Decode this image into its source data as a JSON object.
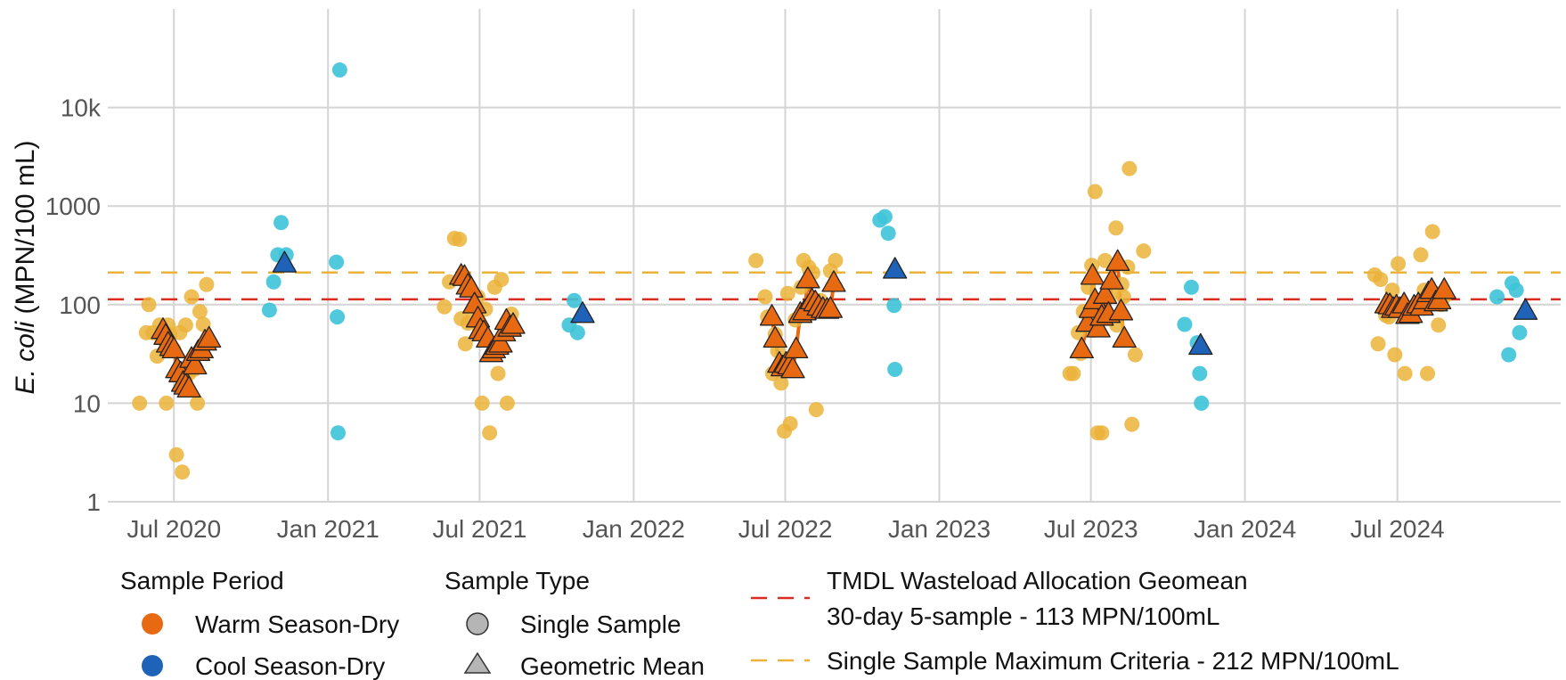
{
  "chart_data": {
    "type": "scatter",
    "y_scale": "log",
    "ylabel_italic": "E. coli",
    "ylabel_rest": " (MPN/100 mL)",
    "ylim": [
      1,
      100000
    ],
    "y_ticks": [
      {
        "v": 1,
        "label": "1"
      },
      {
        "v": 10,
        "label": "10"
      },
      {
        "v": 100,
        "label": "100"
      },
      {
        "v": 1000,
        "label": "1000"
      },
      {
        "v": 10000,
        "label": "10k"
      }
    ],
    "xlim": [
      "2020-04-13",
      "2025-01-12"
    ],
    "x_ticks": [
      {
        "date": "2020-07-01",
        "label": "Jul 2020"
      },
      {
        "date": "2021-01-01",
        "label": "Jan 2021"
      },
      {
        "date": "2021-07-01",
        "label": "Jul 2021"
      },
      {
        "date": "2022-01-01",
        "label": "Jan 2022"
      },
      {
        "date": "2022-07-01",
        "label": "Jul 2022"
      },
      {
        "date": "2023-01-01",
        "label": "Jan 2023"
      },
      {
        "date": "2023-07-01",
        "label": "Jul 2023"
      },
      {
        "date": "2024-01-01",
        "label": "Jan 2024"
      },
      {
        "date": "2024-07-01",
        "label": "Jul 2024"
      }
    ],
    "grid": true,
    "colors": {
      "warm_single": "#ebb33a",
      "cool_single": "#3dc3d9",
      "warm_mean": "#e76a13",
      "cool_mean": "#1f63b9",
      "warm_line": "#e76a13",
      "tmdl_line": "#db2a1f",
      "max_line": "#ebb33a",
      "grid": "#d4d4d4"
    },
    "reference_lines": [
      {
        "key": "tmdl",
        "value": 113,
        "color": "#db2a1f"
      },
      {
        "key": "max",
        "value": 212,
        "color": "#ebb33a"
      }
    ],
    "warm_single": [
      [
        "2020-05-21",
        10
      ],
      [
        "2020-05-29",
        52
      ],
      [
        "2020-06-01",
        100
      ],
      [
        "2020-06-06",
        52
      ],
      [
        "2020-06-11",
        30
      ],
      [
        "2020-06-14",
        62
      ],
      [
        "2020-06-17",
        45
      ],
      [
        "2020-06-22",
        10
      ],
      [
        "2020-06-24",
        62
      ],
      [
        "2020-06-26",
        50
      ],
      [
        "2020-07-01",
        35
      ],
      [
        "2020-07-04",
        3
      ],
      [
        "2020-07-08",
        52
      ],
      [
        "2020-07-11",
        2
      ],
      [
        "2020-07-15",
        62
      ],
      [
        "2020-07-19",
        20
      ],
      [
        "2020-07-22",
        120
      ],
      [
        "2020-07-25",
        22
      ],
      [
        "2020-07-29",
        10
      ],
      [
        "2020-08-01",
        85
      ],
      [
        "2020-08-05",
        63
      ],
      [
        "2020-08-09",
        160
      ],
      [
        "2021-05-20",
        95
      ],
      [
        "2021-05-26",
        170
      ],
      [
        "2021-06-01",
        470
      ],
      [
        "2021-06-07",
        460
      ],
      [
        "2021-06-09",
        72
      ],
      [
        "2021-06-14",
        40
      ],
      [
        "2021-06-17",
        65
      ],
      [
        "2021-06-24",
        80
      ],
      [
        "2021-06-29",
        120
      ],
      [
        "2021-07-01",
        55
      ],
      [
        "2021-07-04",
        10
      ],
      [
        "2021-07-08",
        90
      ],
      [
        "2021-07-13",
        5
      ],
      [
        "2021-07-19",
        150
      ],
      [
        "2021-07-23",
        20
      ],
      [
        "2021-07-27",
        180
      ],
      [
        "2021-08-03",
        10
      ],
      [
        "2021-08-08",
        80
      ],
      [
        "2022-05-27",
        280
      ],
      [
        "2022-06-07",
        120
      ],
      [
        "2022-06-10",
        75
      ],
      [
        "2022-06-16",
        20
      ],
      [
        "2022-06-19",
        50
      ],
      [
        "2022-06-22",
        34
      ],
      [
        "2022-06-26",
        16
      ],
      [
        "2022-06-30",
        5.2
      ],
      [
        "2022-07-04",
        130
      ],
      [
        "2022-07-07",
        6.2
      ],
      [
        "2022-07-13",
        70
      ],
      [
        "2022-07-20",
        150
      ],
      [
        "2022-07-23",
        280
      ],
      [
        "2022-07-29",
        240
      ],
      [
        "2022-08-03",
        210
      ],
      [
        "2022-08-07",
        8.6
      ],
      [
        "2022-08-12",
        110
      ],
      [
        "2022-08-18",
        90
      ],
      [
        "2022-08-24",
        220
      ],
      [
        "2022-08-30",
        280
      ],
      [
        "2023-06-06",
        20
      ],
      [
        "2023-06-10",
        20
      ],
      [
        "2023-06-16",
        52
      ],
      [
        "2023-06-19",
        32
      ],
      [
        "2023-06-22",
        85
      ],
      [
        "2023-06-28",
        150
      ],
      [
        "2023-07-02",
        250
      ],
      [
        "2023-07-04",
        55
      ],
      [
        "2023-07-06",
        1400
      ],
      [
        "2023-07-09",
        5
      ],
      [
        "2023-07-14",
        5
      ],
      [
        "2023-07-18",
        280
      ],
      [
        "2023-07-26",
        130
      ],
      [
        "2023-07-31",
        600
      ],
      [
        "2023-08-01",
        62
      ],
      [
        "2023-08-07",
        160
      ],
      [
        "2023-08-09",
        120
      ],
      [
        "2023-08-14",
        240
      ],
      [
        "2023-08-16",
        2400
      ],
      [
        "2023-08-19",
        6.1
      ],
      [
        "2023-08-23",
        31
      ],
      [
        "2023-09-02",
        350
      ],
      [
        "2024-06-04",
        200
      ],
      [
        "2024-06-08",
        40
      ],
      [
        "2024-06-11",
        180
      ],
      [
        "2024-06-17",
        78
      ],
      [
        "2024-06-21",
        75
      ],
      [
        "2024-06-25",
        140
      ],
      [
        "2024-06-28",
        31
      ],
      [
        "2024-07-02",
        260
      ],
      [
        "2024-07-05",
        95
      ],
      [
        "2024-07-10",
        20
      ],
      [
        "2024-07-17",
        85
      ],
      [
        "2024-07-21",
        90
      ],
      [
        "2024-07-29",
        320
      ],
      [
        "2024-08-02",
        140
      ],
      [
        "2024-08-06",
        20
      ],
      [
        "2024-08-12",
        550
      ],
      [
        "2024-08-16",
        130
      ],
      [
        "2024-08-19",
        62
      ],
      [
        "2024-08-22",
        100
      ],
      [
        "2024-08-26",
        120
      ]
    ],
    "cool_single": [
      [
        "2020-10-23",
        88
      ],
      [
        "2020-10-28",
        170
      ],
      [
        "2020-11-02",
        320
      ],
      [
        "2020-11-06",
        680
      ],
      [
        "2020-11-12",
        320
      ],
      [
        "2021-01-11",
        270
      ],
      [
        "2021-01-12",
        75
      ],
      [
        "2021-01-13",
        5
      ],
      [
        "2021-01-15",
        24000
      ],
      [
        "2021-10-16",
        62
      ],
      [
        "2021-10-22",
        110
      ],
      [
        "2021-10-26",
        52
      ],
      [
        "2022-10-22",
        720
      ],
      [
        "2022-10-28",
        780
      ],
      [
        "2022-11-01",
        530
      ],
      [
        "2022-11-08",
        98
      ],
      [
        "2022-11-09",
        22
      ],
      [
        "2023-10-21",
        63
      ],
      [
        "2023-10-29",
        150
      ],
      [
        "2023-11-05",
        41
      ],
      [
        "2023-11-08",
        20
      ],
      [
        "2023-11-10",
        10
      ],
      [
        "2024-10-28",
        120
      ],
      [
        "2024-11-11",
        31
      ],
      [
        "2024-11-15",
        165
      ],
      [
        "2024-11-20",
        140
      ],
      [
        "2024-11-24",
        52
      ]
    ],
    "warm_mean": [
      [
        [
          "2020-06-18",
          55
        ],
        [
          "2020-06-21",
          48
        ],
        [
          "2020-06-24",
          40
        ],
        [
          "2020-06-28",
          37
        ],
        [
          "2020-07-01",
          35
        ],
        [
          "2020-07-05",
          22
        ],
        [
          "2020-07-09",
          20
        ],
        [
          "2020-07-12",
          16
        ],
        [
          "2020-07-15",
          15
        ],
        [
          "2020-07-19",
          14
        ],
        [
          "2020-07-22",
          28
        ],
        [
          "2020-07-26",
          24
        ],
        [
          "2020-07-30",
          33
        ],
        [
          "2020-08-03",
          35
        ],
        [
          "2020-08-07",
          42
        ],
        [
          "2020-08-12",
          45
        ]
      ],
      [
        [
          "2021-06-09",
          195
        ],
        [
          "2021-06-13",
          190
        ],
        [
          "2021-06-17",
          155
        ],
        [
          "2021-06-21",
          145
        ],
        [
          "2021-06-25",
          100
        ],
        [
          "2021-06-29",
          72
        ],
        [
          "2021-07-02",
          55
        ],
        [
          "2021-07-06",
          52
        ],
        [
          "2021-07-11",
          45
        ],
        [
          "2021-07-15",
          32
        ],
        [
          "2021-07-18",
          35
        ],
        [
          "2021-07-22",
          38
        ],
        [
          "2021-07-26",
          40
        ],
        [
          "2021-07-30",
          52
        ],
        [
          "2021-08-02",
          68
        ],
        [
          "2021-08-06",
          58
        ],
        [
          "2021-08-10",
          62
        ]
      ],
      [
        [
          "2022-06-15",
          75
        ],
        [
          "2022-06-19",
          45
        ],
        [
          "2022-06-24",
          25
        ],
        [
          "2022-06-28",
          23
        ],
        [
          "2022-07-02",
          25
        ],
        [
          "2022-07-06",
          24
        ],
        [
          "2022-07-10",
          22
        ],
        [
          "2022-07-14",
          35
        ],
        [
          "2022-07-19",
          80
        ],
        [
          "2022-07-24",
          85
        ],
        [
          "2022-07-28",
          180
        ],
        [
          "2022-08-02",
          110
        ],
        [
          "2022-08-06",
          105
        ],
        [
          "2022-08-10",
          95
        ],
        [
          "2022-08-15",
          90
        ],
        [
          "2022-08-20",
          88
        ],
        [
          "2022-08-24",
          90
        ],
        [
          "2022-08-28",
          165
        ]
      ],
      [
        [
          "2023-06-20",
          35
        ],
        [
          "2023-06-27",
          65
        ],
        [
          "2023-07-01",
          90
        ],
        [
          "2023-07-03",
          195
        ],
        [
          "2023-07-06",
          110
        ],
        [
          "2023-07-10",
          57
        ],
        [
          "2023-07-14",
          75
        ],
        [
          "2023-07-18",
          125
        ],
        [
          "2023-07-22",
          80
        ],
        [
          "2023-07-26",
          175
        ],
        [
          "2023-08-02",
          270
        ],
        [
          "2023-08-06",
          85
        ],
        [
          "2023-08-10",
          45
        ]
      ],
      [
        [
          "2024-06-18",
          100
        ],
        [
          "2024-06-22",
          98
        ],
        [
          "2024-06-26",
          90
        ],
        [
          "2024-06-30",
          95
        ],
        [
          "2024-07-04",
          90
        ],
        [
          "2024-07-09",
          100
        ],
        [
          "2024-07-13",
          78
        ],
        [
          "2024-07-17",
          80
        ],
        [
          "2024-07-21",
          95
        ],
        [
          "2024-07-26",
          100
        ],
        [
          "2024-07-30",
          95
        ],
        [
          "2024-08-03",
          110
        ],
        [
          "2024-08-07",
          130
        ],
        [
          "2024-08-11",
          140
        ],
        [
          "2024-08-16",
          105
        ],
        [
          "2024-08-20",
          110
        ],
        [
          "2024-08-26",
          140
        ]
      ]
    ],
    "cool_mean": [
      [
        "2020-11-10",
        260
      ],
      [
        "2021-11-01",
        80
      ],
      [
        "2022-11-09",
        225
      ],
      [
        "2023-11-09",
        38
      ],
      [
        "2024-12-01",
        86
      ]
    ],
    "legend": {
      "period_title": "Sample Period",
      "period_items": [
        {
          "label": "Warm Season-Dry",
          "color": "#e76a13"
        },
        {
          "label": "Cool Season-Dry",
          "color": "#1f63b9"
        }
      ],
      "type_title": "Sample Type",
      "type_items": [
        {
          "label": "Single Sample",
          "shape": "circle"
        },
        {
          "label": "Geometric Mean",
          "shape": "triangle"
        }
      ],
      "line_items": [
        {
          "line1": "TMDL Wasteload Allocation Geomean",
          "line2": "30-day 5-sample - 113 MPN/100mL",
          "color": "#db2a1f"
        },
        {
          "line1": "Single Sample Maximum Criteria - 212 MPN/100mL",
          "color": "#ebb33a"
        }
      ]
    }
  }
}
